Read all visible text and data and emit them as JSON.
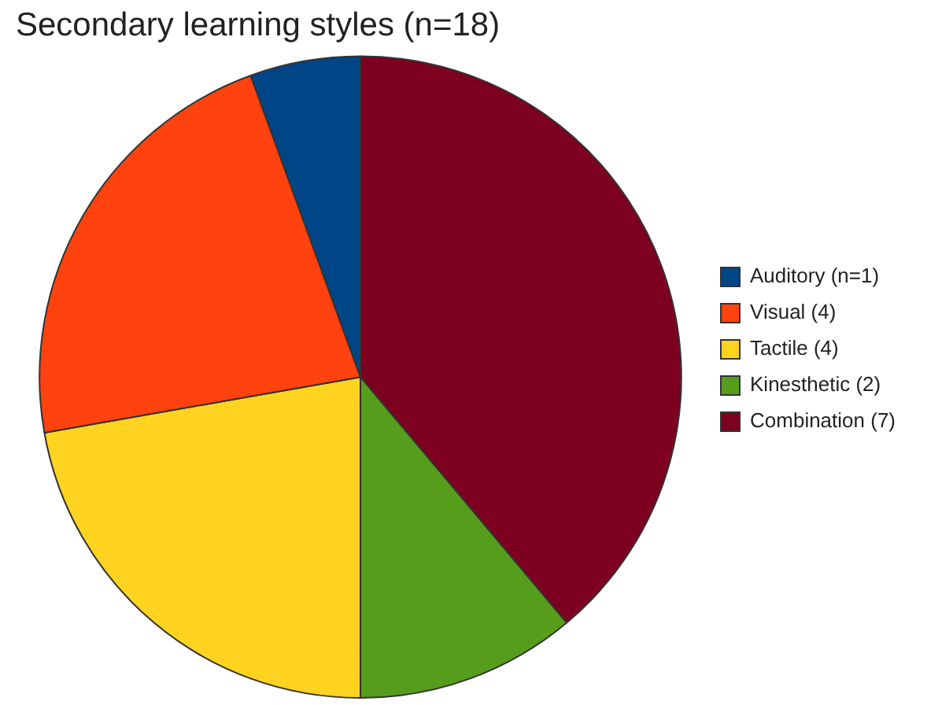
{
  "chart_data": {
    "type": "pie",
    "title": "Secondary learning styles (n=18)",
    "categories": [
      "Auditory (n=1)",
      "Visual (4)",
      "Tactile (4)",
      "Kinesthetic (2)",
      "Combination (7)"
    ],
    "values": [
      1,
      4,
      4,
      2,
      7
    ],
    "colors": [
      "#004586",
      "#ff420e",
      "#ffd320",
      "#579d1c",
      "#7e0021"
    ],
    "legend": "right"
  }
}
